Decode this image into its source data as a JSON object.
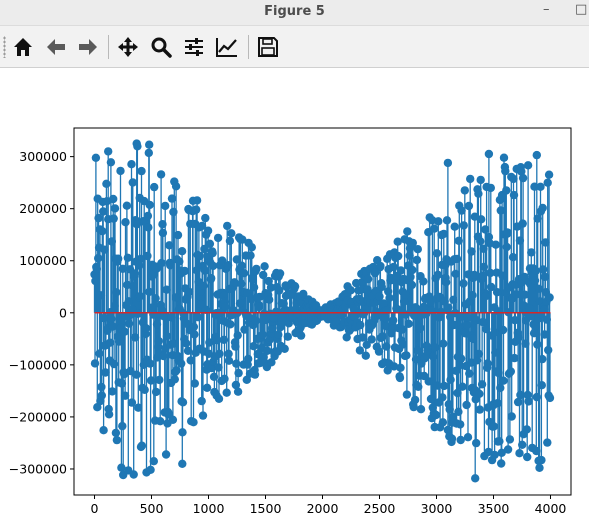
{
  "window": {
    "title": "Figure 5",
    "minimize_glyph": "–",
    "maximize_glyph": "□"
  },
  "toolbar": {
    "items": [
      {
        "icon": "home-icon"
      },
      {
        "icon": "back-arrow-icon"
      },
      {
        "icon": "forward-arrow-icon"
      },
      {
        "icon": "pan-icon"
      },
      {
        "icon": "zoom-icon"
      },
      {
        "icon": "subplots-config-icon"
      },
      {
        "icon": "edit-axis-icon"
      },
      {
        "icon": "save-icon"
      }
    ]
  },
  "chart_data": {
    "type": "stem",
    "title": "",
    "xlabel": "",
    "ylabel": "",
    "xlim": [
      -180,
      4180
    ],
    "ylim": [
      -350000,
      355000
    ],
    "x_ticks": [
      0,
      500,
      1000,
      1500,
      2000,
      2500,
      3000,
      3500,
      4000
    ],
    "x_tick_labels": [
      "0",
      "500",
      "1000",
      "1500",
      "2000",
      "2500",
      "3000",
      "3500",
      "4000"
    ],
    "y_ticks": [
      -300000,
      -200000,
      -100000,
      0,
      100000,
      200000,
      300000
    ],
    "y_tick_labels": [
      "−300000",
      "−200000",
      "−100000",
      "0",
      "100000",
      "200000",
      "300000"
    ],
    "n_points": 4000,
    "x_range": [
      0,
      4000
    ],
    "envelope": [
      {
        "x": 0,
        "y": 300000
      },
      {
        "x": 400,
        "y": 325000
      },
      {
        "x": 1000,
        "y": 200000
      },
      {
        "x": 1500,
        "y": 110000
      },
      {
        "x": 2000,
        "y": 5000
      },
      {
        "x": 2500,
        "y": 110000
      },
      {
        "x": 3000,
        "y": 230000
      },
      {
        "x": 3500,
        "y": 300000
      },
      {
        "x": 4000,
        "y": 305000
      }
    ],
    "labeled_extremes": [
      {
        "x": 120,
        "y": 310000
      },
      {
        "x": 370,
        "y": 325000
      },
      {
        "x": 480,
        "y": 323000
      },
      {
        "x": 3100,
        "y": 288000
      },
      {
        "x": 3460,
        "y": 305000
      },
      {
        "x": 3880,
        "y": 303000
      },
      {
        "x": 520,
        "y": -285000
      },
      {
        "x": 770,
        "y": -290000
      },
      {
        "x": 3340,
        "y": -318000
      },
      {
        "x": 3510,
        "y": -273000
      },
      {
        "x": 3920,
        "y": -283000
      }
    ],
    "stem_color": "#1f77b4",
    "baseline_color": "#d62728",
    "grid": false
  }
}
